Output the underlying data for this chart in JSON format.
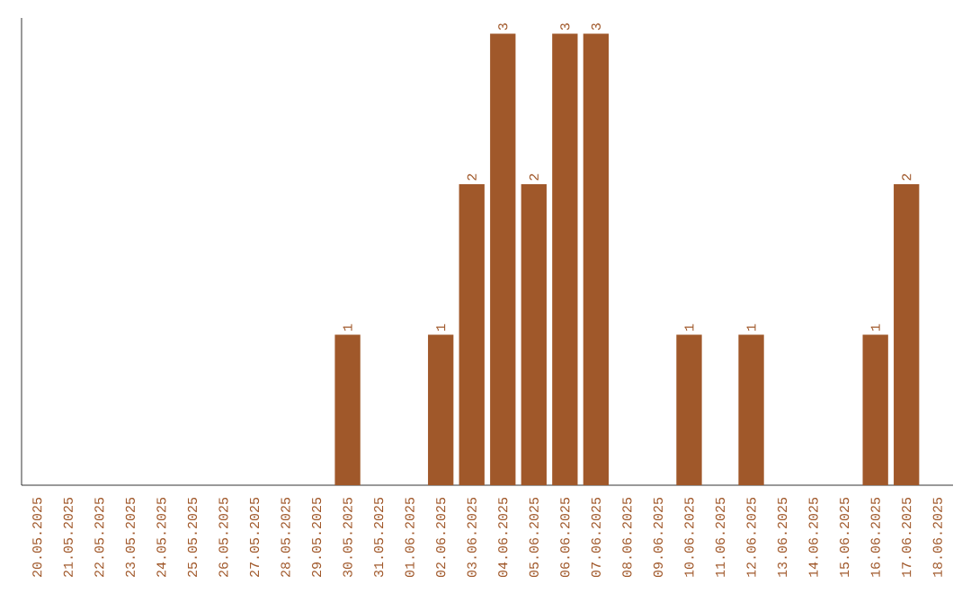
{
  "chart_data": {
    "type": "bar",
    "categories": [
      "20.05.2025",
      "21.05.2025",
      "22.05.2025",
      "23.05.2025",
      "24.05.2025",
      "25.05.2025",
      "26.05.2025",
      "27.05.2025",
      "28.05.2025",
      "29.05.2025",
      "30.05.2025",
      "31.05.2025",
      "01.06.2025",
      "02.06.2025",
      "03.06.2025",
      "04.06.2025",
      "05.06.2025",
      "06.06.2025",
      "07.06.2025",
      "08.06.2025",
      "09.06.2025",
      "10.06.2025",
      "11.06.2025",
      "12.06.2025",
      "13.06.2025",
      "14.06.2025",
      "15.06.2025",
      "16.06.2025",
      "17.06.2025",
      "18.06.2025"
    ],
    "values": [
      0,
      0,
      0,
      0,
      0,
      0,
      0,
      0,
      0,
      0,
      1,
      0,
      0,
      1,
      2,
      3,
      2,
      3,
      3,
      0,
      0,
      1,
      0,
      1,
      0,
      0,
      0,
      1,
      2,
      0
    ],
    "value_labels": [
      null,
      null,
      null,
      null,
      null,
      null,
      null,
      null,
      null,
      null,
      "1",
      null,
      null,
      "1",
      "2",
      "3",
      "2",
      "3",
      "3",
      null,
      null,
      "1",
      null,
      "1",
      null,
      null,
      null,
      "1",
      "2",
      null
    ],
    "color": "#a0582a"
  }
}
